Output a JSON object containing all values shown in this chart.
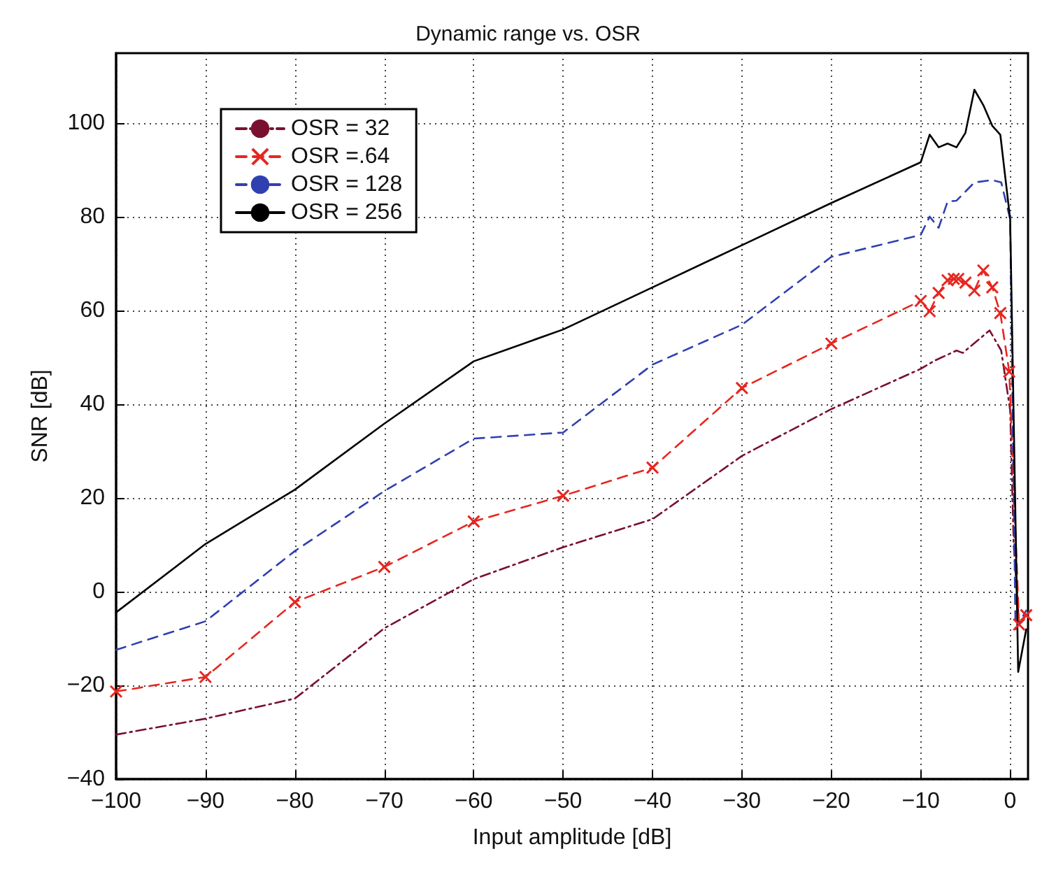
{
  "chart_data": {
    "type": "line",
    "title": "Dynamic range vs. OSR",
    "xlabel": "Input amplitude [dB]",
    "ylabel": "SNR [dB]",
    "xlim": [
      -100,
      2
    ],
    "xticks": [
      -100,
      -90,
      -80,
      -70,
      -60,
      -50,
      -40,
      -30,
      -20,
      -10,
      0
    ],
    "ylim": [
      -40,
      115
    ],
    "yticks": [
      -40,
      -20,
      0,
      20,
      40,
      60,
      80,
      100
    ],
    "grid": true,
    "legend": "top left",
    "series": [
      {
        "name": "OSR = 32",
        "color": "#7a1030",
        "line_style": "dashdot",
        "marker": "none",
        "x": [
          -100,
          -90,
          -80,
          -70,
          -60,
          -50,
          -40,
          -30,
          -20,
          -10,
          -8.5,
          -6,
          -5.3,
          -2.3,
          -1,
          0,
          0.4,
          1,
          1.8
        ],
        "values": [
          -30.5,
          -27.1,
          -22.8,
          -7.8,
          2.7,
          9.5,
          15.5,
          29,
          39,
          47.6,
          49.3,
          51.5,
          51,
          55.8,
          51.5,
          38.8,
          10,
          -7,
          -5
        ]
      },
      {
        "name": "OSR =.64",
        "color": "#e8261f",
        "line_style": "dashed",
        "marker": "cross",
        "x": [
          -100,
          -90,
          -80,
          -70,
          -60,
          -50,
          -40,
          -30,
          -20,
          -10,
          -9,
          -8,
          -7,
          -6.3,
          -5.8,
          -5,
          -4,
          -3,
          -2,
          -1.1,
          -0.1,
          1,
          1.8
        ],
        "values": [
          -21.3,
          -18.2,
          -2.2,
          5.3,
          15,
          20.5,
          26.5,
          43.5,
          53,
          62.1,
          59.9,
          63.8,
          66.5,
          66.8,
          66.8,
          66,
          64.3,
          68.6,
          65,
          59.5,
          47,
          -7,
          -5
        ]
      },
      {
        "name": "OSR = 128",
        "color": "#3040b0",
        "line_style": "dashed",
        "marker": "none",
        "x": [
          -100,
          -90,
          -80,
          -70,
          -60,
          -50,
          -40,
          -30,
          -20,
          -10,
          -9,
          -8,
          -7,
          -6,
          -4,
          -2,
          -1,
          0,
          0.6,
          1.8
        ],
        "values": [
          -12.4,
          -6.3,
          8.7,
          21.5,
          32.7,
          34,
          48.5,
          57,
          71.5,
          76.2,
          80.1,
          77.7,
          83.3,
          83.5,
          87.4,
          87.9,
          87.4,
          79.6,
          -8,
          -4
        ]
      },
      {
        "name": "OSR = 256",
        "color": "#000000",
        "line_style": "solid",
        "marker": "none",
        "x": [
          -100,
          -90,
          -80,
          -70,
          -60,
          -50,
          -40,
          -30,
          -20,
          -10,
          -9,
          -8,
          -7,
          -6,
          -5,
          -4,
          -3,
          -2,
          -1.1,
          0,
          0.9,
          1.8
        ],
        "values": [
          -4.4,
          10.2,
          21.8,
          35.9,
          49.2,
          56,
          65,
          74,
          83,
          91.7,
          97.6,
          94.9,
          95.7,
          94.9,
          98,
          107.2,
          103.9,
          99.5,
          97.6,
          79.6,
          -17.1,
          -8
        ]
      }
    ]
  }
}
